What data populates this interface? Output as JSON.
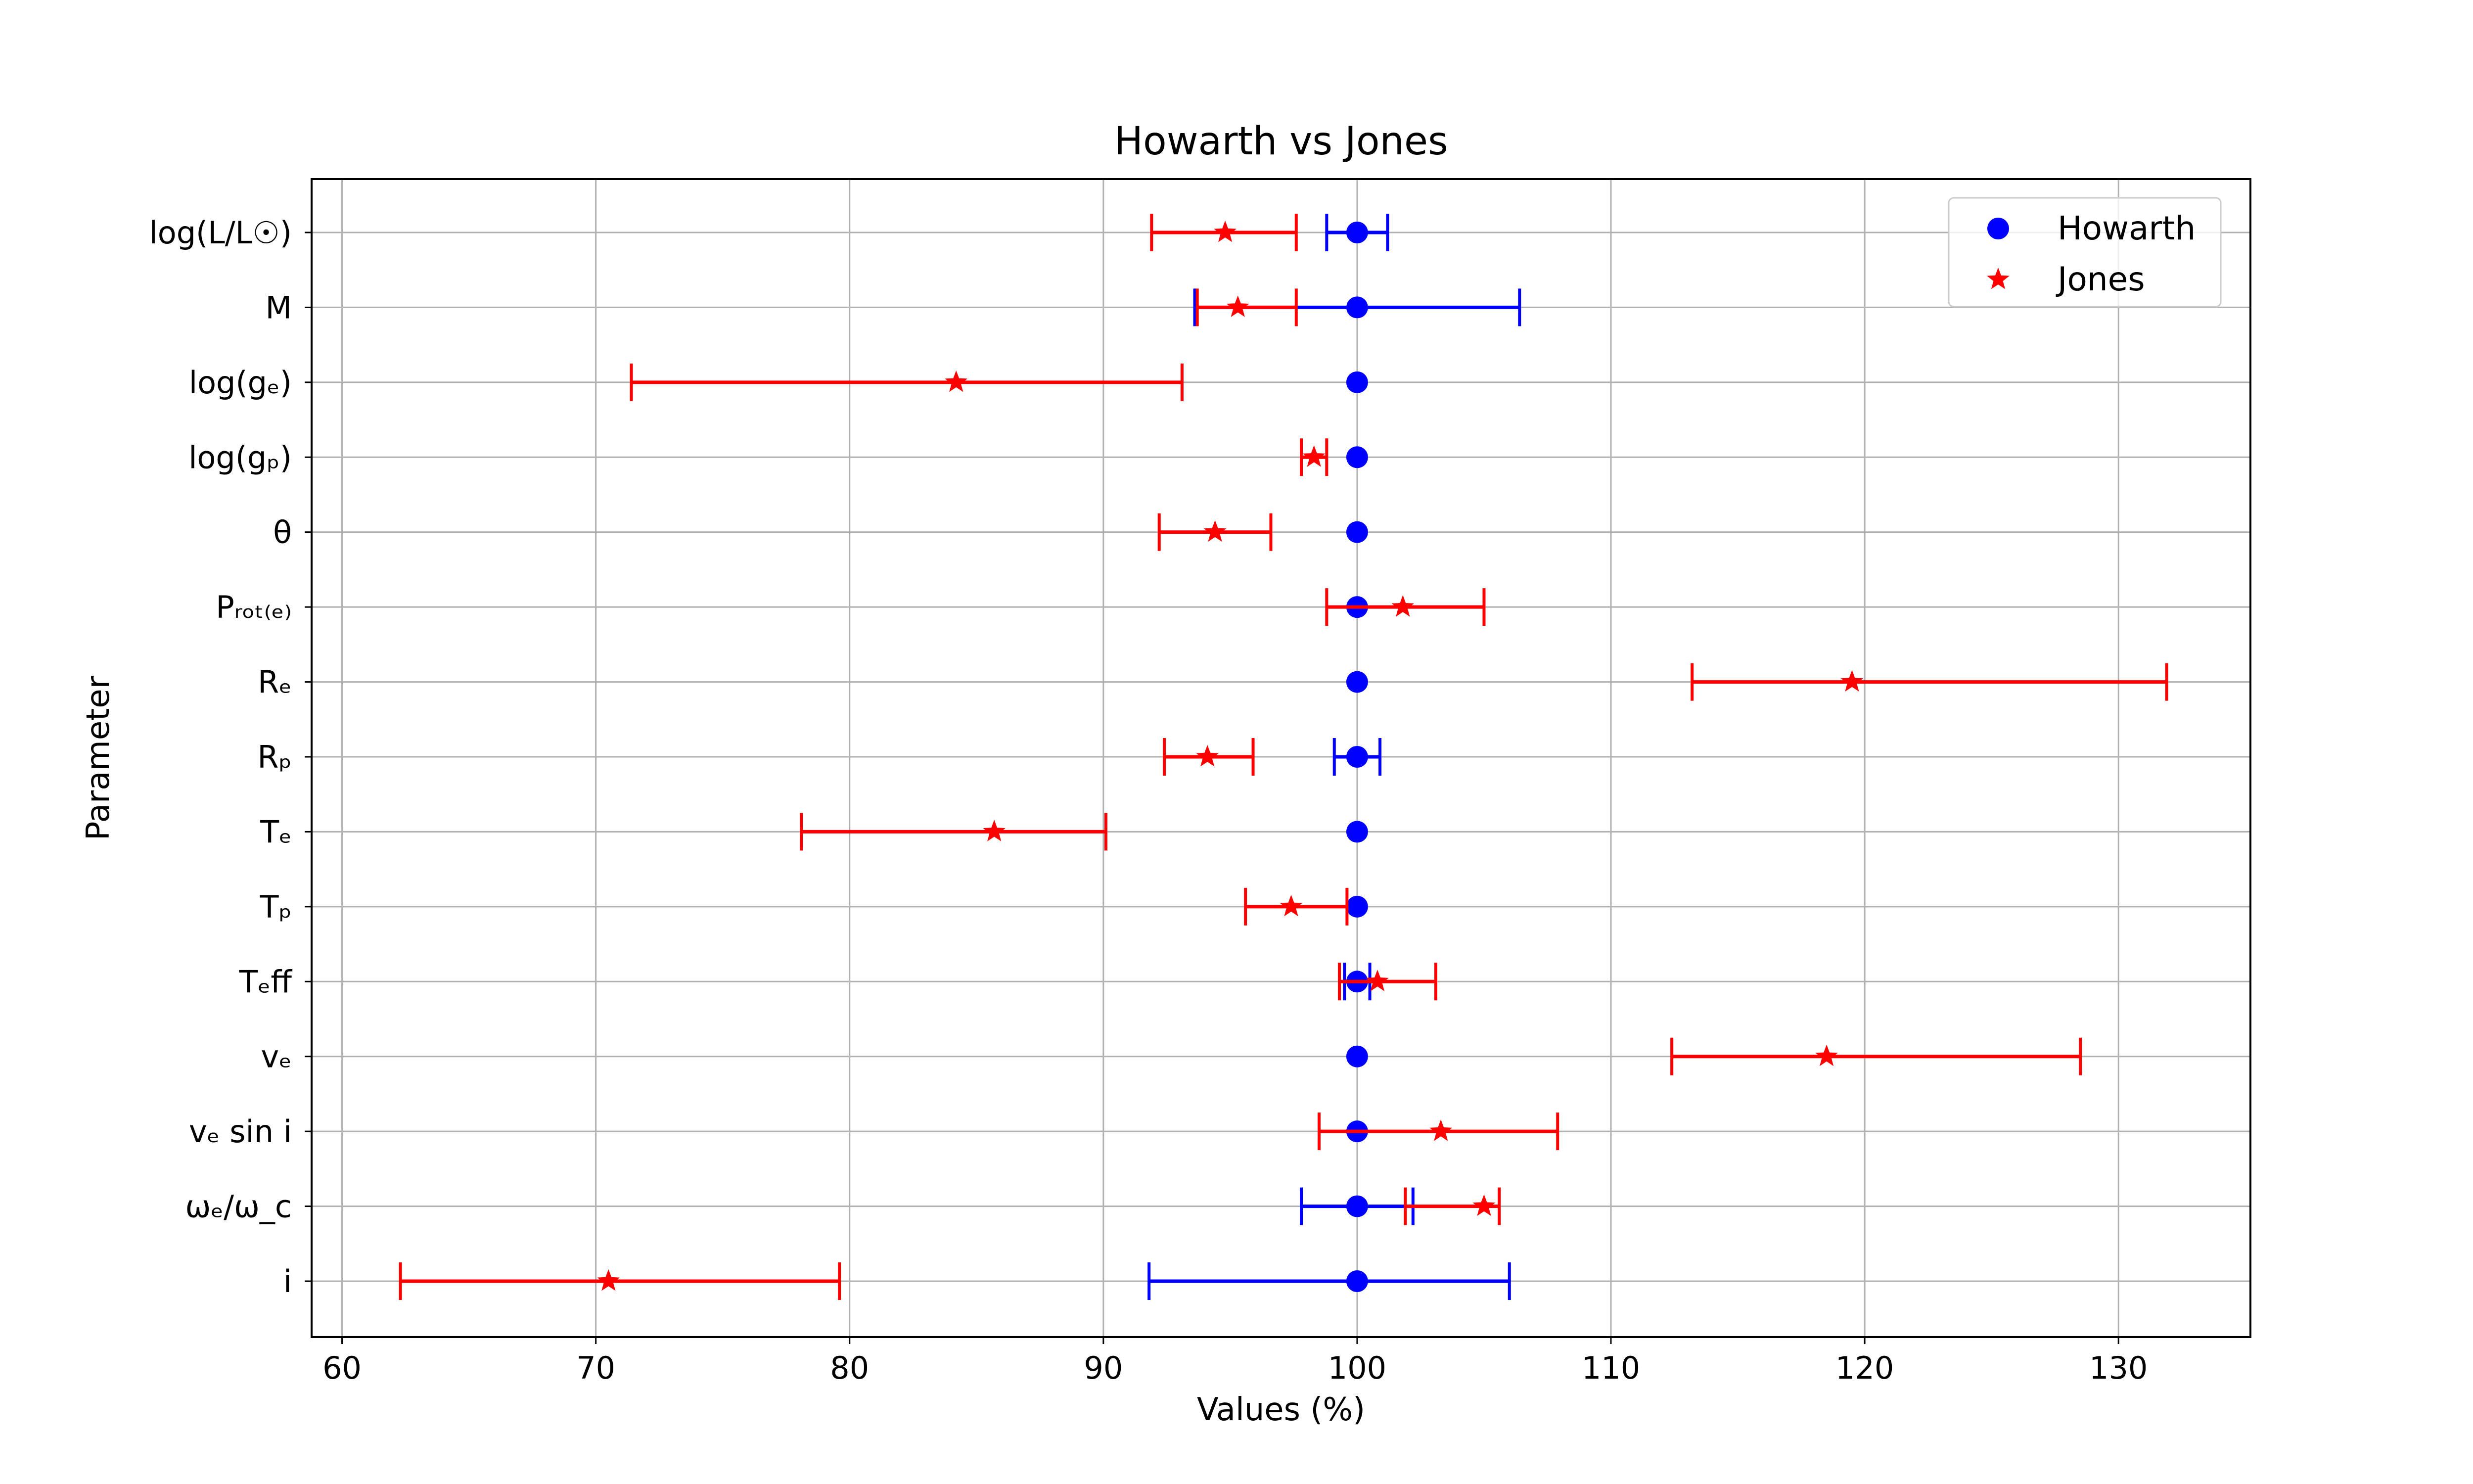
{
  "chart_data": {
    "type": "scatter",
    "title": "Howarth vs Jones",
    "xlabel": "Values (%)",
    "ylabel": "Parameter",
    "xlim": [
      58.8,
      135.2
    ],
    "xticks": [
      60,
      70,
      80,
      90,
      100,
      110,
      120,
      130
    ],
    "grid": true,
    "legend_position": "top-right",
    "categories": [
      "log(L/L☉)",
      "M",
      "log(gₑ)",
      "log(gₚ)",
      "θ",
      "Pᵣₒₜ₍ₑ₎",
      "Rₑ",
      "Rₚ",
      "Tₑ",
      "Tₚ",
      "Tₑff",
      "vₑ",
      "vₑ sin i",
      "ωₑ/ω_c",
      "i"
    ],
    "series": [
      {
        "name": "Howarth",
        "marker": "circle",
        "color": "#0000ff",
        "values": [
          100,
          100,
          100,
          100,
          100,
          100,
          100,
          100,
          100,
          100,
          100,
          100,
          100,
          100,
          100
        ],
        "err_low": [
          98.8,
          93.6,
          100,
          100,
          100,
          100,
          100,
          99.1,
          100,
          100,
          99.5,
          100,
          100,
          97.8,
          91.8
        ],
        "err_high": [
          101.2,
          106.4,
          100,
          100,
          100,
          100,
          100,
          100.9,
          100,
          100,
          100.5,
          100,
          100,
          102.2,
          106.0
        ]
      },
      {
        "name": "Jones",
        "marker": "star",
        "color": "#ff0000",
        "values": [
          94.8,
          95.3,
          84.2,
          98.3,
          94.4,
          101.8,
          119.5,
          94.1,
          85.7,
          97.4,
          100.8,
          118.5,
          103.3,
          105.0,
          70.5
        ],
        "err_low": [
          91.9,
          93.7,
          71.4,
          97.8,
          92.2,
          98.8,
          113.2,
          92.4,
          78.1,
          95.6,
          99.3,
          112.4,
          98.5,
          101.9,
          62.3
        ],
        "err_high": [
          97.6,
          97.6,
          93.1,
          98.8,
          96.6,
          105.0,
          131.9,
          95.9,
          90.1,
          99.6,
          103.1,
          128.5,
          107.9,
          105.6,
          79.6
        ]
      }
    ]
  }
}
